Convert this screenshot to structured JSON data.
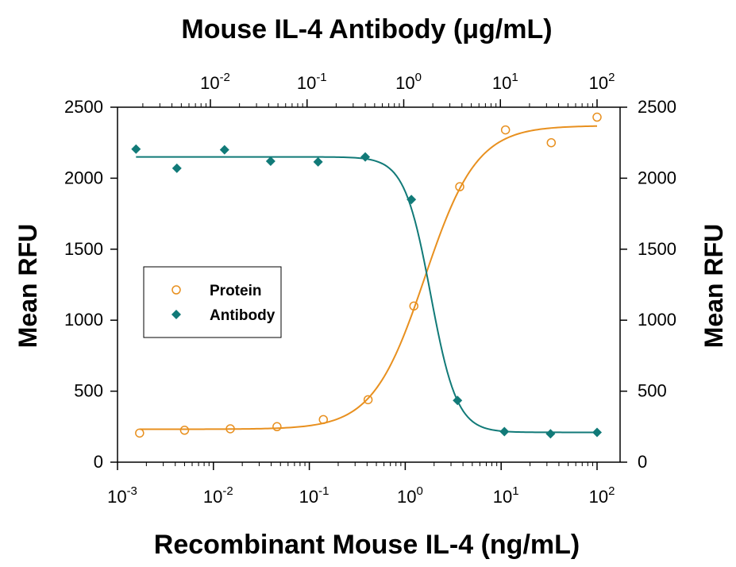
{
  "chart_data": {
    "type": "scatter",
    "title": "",
    "xlabel": "Recombinant Mouse IL-4 (ng/mL)",
    "x2label": "Mouse IL-4 Antibody (μg/mL)",
    "ylabel": "Mean RFU",
    "y2label": "Mean RFU",
    "x_scale": "log",
    "xlim": [
      0.001,
      200
    ],
    "x2_scale": "log",
    "x2lim": [
      0.0017,
      200
    ],
    "ylim": [
      0,
      2500
    ],
    "grid": false,
    "legend_position": "left-center",
    "x_ticks": [
      {
        "value": 0.001,
        "base": "10",
        "exp": "-3"
      },
      {
        "value": 0.01,
        "base": "10",
        "exp": "-2"
      },
      {
        "value": 0.1,
        "base": "10",
        "exp": "-1"
      },
      {
        "value": 1,
        "base": "10",
        "exp": "0"
      },
      {
        "value": 10,
        "base": "10",
        "exp": "1"
      },
      {
        "value": 100,
        "base": "10",
        "exp": "2"
      }
    ],
    "x2_ticks": [
      {
        "value": 0.01,
        "base": "10",
        "exp": "-2"
      },
      {
        "value": 0.1,
        "base": "10",
        "exp": "-1"
      },
      {
        "value": 1,
        "base": "10",
        "exp": "0"
      },
      {
        "value": 10,
        "base": "10",
        "exp": "1"
      },
      {
        "value": 100,
        "base": "10",
        "exp": "2"
      }
    ],
    "y_ticks": [
      "0",
      "500",
      "1000",
      "1500",
      "2000",
      "2500"
    ],
    "series": [
      {
        "name": "Protein",
        "axis": "bottom",
        "marker": "open-circle",
        "color": "#e8901f",
        "x": [
          0.0017,
          0.005,
          0.015,
          0.046,
          0.14,
          0.41,
          1.23,
          3.7,
          11.1,
          33.3,
          100
        ],
        "y": [
          205,
          225,
          235,
          250,
          300,
          440,
          1100,
          1940,
          2340,
          2250,
          2430
        ],
        "fit": {
          "bottom": 232,
          "top": 2370,
          "ec50": 1.6,
          "hill": 1.6
        }
      },
      {
        "name": "Antibody",
        "axis": "top",
        "marker": "filled-diamond",
        "color": "#117a78",
        "x": [
          0.0017,
          0.0045,
          0.014,
          0.042,
          0.13,
          0.4,
          1.2,
          3.6,
          11.0,
          33.0,
          100
        ],
        "y": [
          2205,
          2070,
          2200,
          2120,
          2115,
          2150,
          1850,
          435,
          215,
          200,
          210
        ],
        "fit": {
          "top": 2150,
          "bottom": 210,
          "ec50": 1.9,
          "hill": 3.2
        }
      }
    ],
    "colors": {
      "axis": "#000000",
      "protein": "#e8901f",
      "antibody": "#117a78"
    }
  }
}
